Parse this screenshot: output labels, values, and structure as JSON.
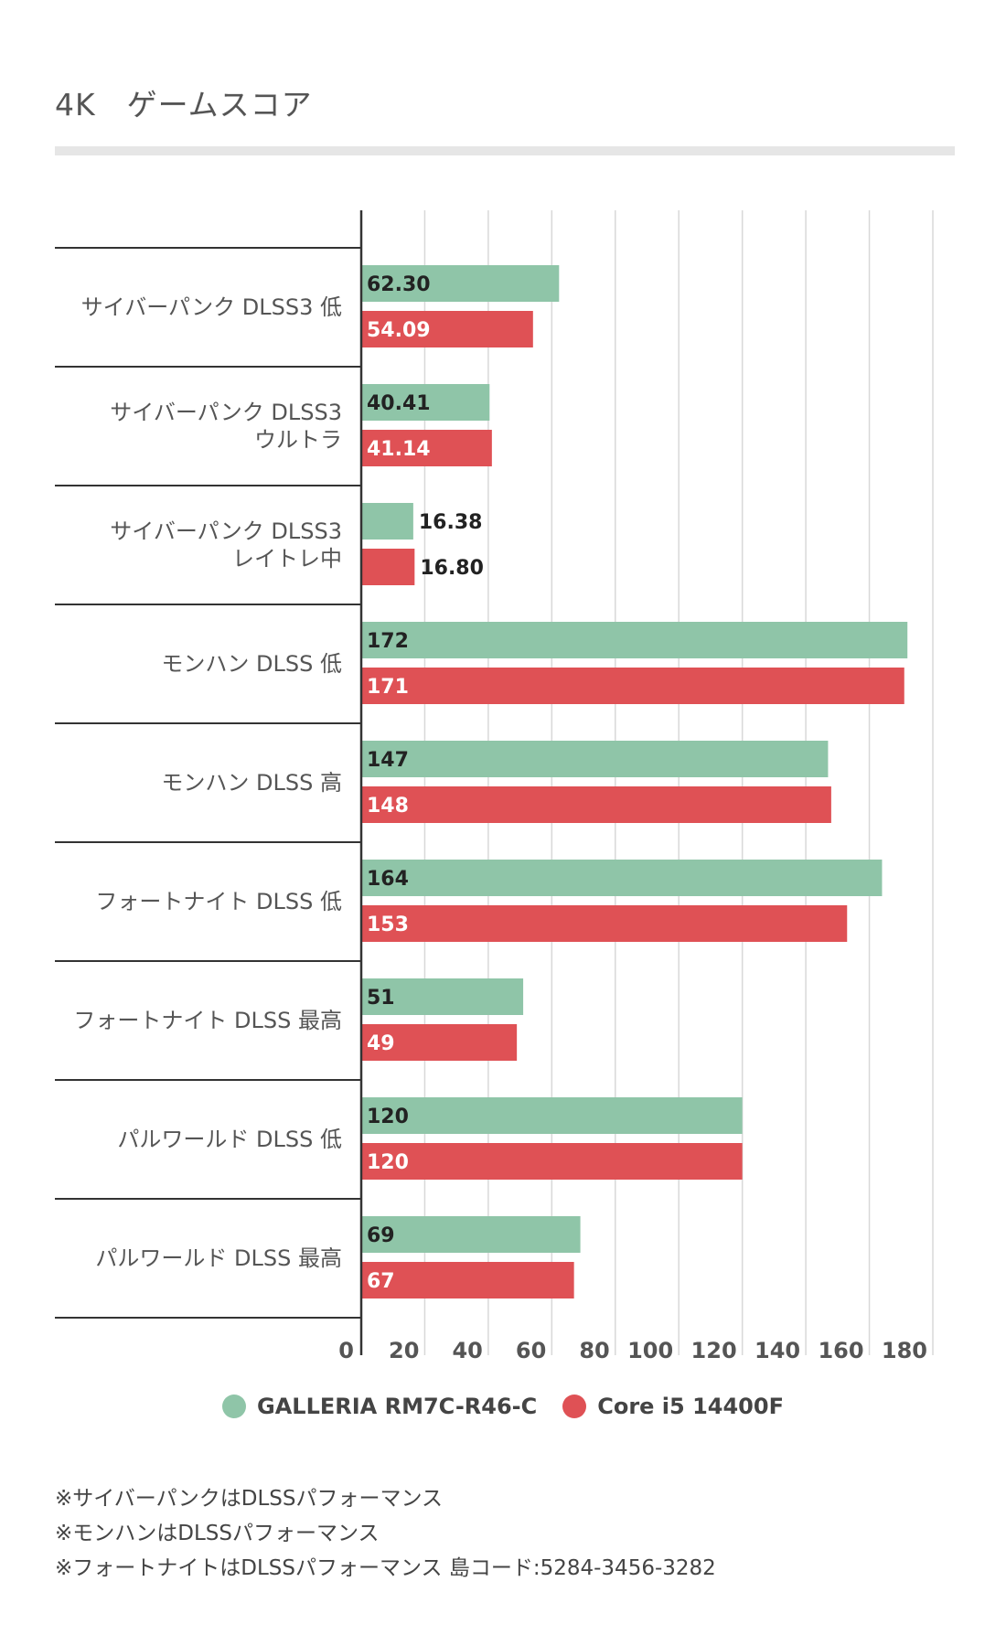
{
  "title": "4K　ゲームスコア",
  "chart_data": {
    "type": "bar",
    "orientation": "horizontal",
    "categories": [
      [
        "サイバーパンク DLSS3 低"
      ],
      [
        "サイバーパンク DLSS3",
        "ウルトラ"
      ],
      [
        "サイバーパンク DLSS3",
        "レイトレ中"
      ],
      [
        "モンハン DLSS 低"
      ],
      [
        "モンハン DLSS 高"
      ],
      [
        "フォートナイト DLSS 低"
      ],
      [
        "フォートナイト DLSS 最高"
      ],
      [
        "パルワールド DLSS 低"
      ],
      [
        "パルワールド DLSS 最高"
      ]
    ],
    "series": [
      {
        "name": "GALLERIA RM7C-R46-C",
        "color": "#8fc5a8",
        "values": [
          62.3,
          40.41,
          16.38,
          172,
          147,
          164,
          51,
          120,
          69
        ],
        "labels": [
          "62.30",
          "40.41",
          "16.38",
          "172",
          "147",
          "164",
          "51",
          "120",
          "69"
        ]
      },
      {
        "name": "Core i5 14400F",
        "color": "#df5155",
        "values": [
          54.09,
          41.14,
          16.8,
          171,
          148,
          153,
          49,
          120,
          67
        ],
        "labels": [
          "54.09",
          "41.14",
          "16.80",
          "171",
          "148",
          "153",
          "49",
          "120",
          "67"
        ]
      }
    ],
    "xlim": [
      0,
      180
    ],
    "xticks": [
      0,
      20,
      40,
      60,
      80,
      100,
      120,
      140,
      160,
      180
    ],
    "grid": true,
    "legend": "bottom-center"
  },
  "notes": [
    "※サイバーパンクはDLSSパフォーマンス",
    "※モンハンはDLSSパフォーマンス",
    "※フォートナイトはDLSSパフォーマンス 島コード:5284-3456-3282"
  ]
}
